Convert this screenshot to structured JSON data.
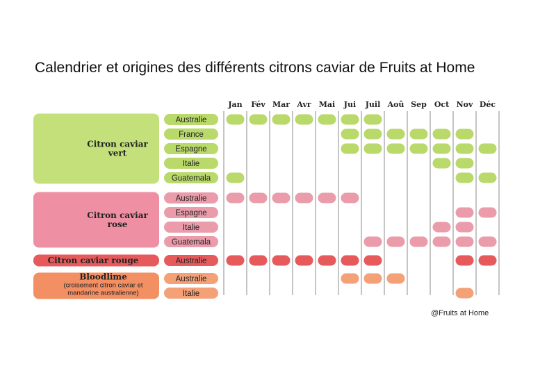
{
  "title": "Calendrier et origines des différents citrons caviar de Fruits at Home",
  "credit": "@Fruits at Home",
  "months": [
    "Jan",
    "Fév",
    "Mar",
    "Avr",
    "Mai",
    "Jui",
    "Juil",
    "Aoû",
    "Sep",
    "Oct",
    "Nov",
    "Déc"
  ],
  "colors": {
    "green": "#b9d96a",
    "green_block": "#c3e07a",
    "pink": "#eb9cab",
    "pink_block": "#ef8fa3",
    "red": "#e65a5c",
    "orange": "#f4a178",
    "orange_block": "#f28f63"
  },
  "groups": [
    {
      "label": [
        "Citron caviar",
        "vert"
      ],
      "sub": [],
      "color": "green",
      "rows": [
        {
          "country": "Australie",
          "months": [
            1,
            2,
            3,
            4,
            5,
            6,
            7
          ]
        },
        {
          "country": "France",
          "months": [
            6,
            7,
            8,
            9,
            10,
            11
          ]
        },
        {
          "country": "Espagne",
          "months": [
            6,
            7,
            8,
            9,
            10,
            11,
            12
          ]
        },
        {
          "country": "Italie",
          "months": [
            10,
            11
          ]
        },
        {
          "country": "Guatemala",
          "months": [
            1,
            11,
            12
          ]
        }
      ]
    },
    {
      "label": [
        "Citron caviar",
        "rose"
      ],
      "sub": [],
      "color": "pink",
      "rows": [
        {
          "country": "Australie",
          "months": [
            1,
            2,
            3,
            4,
            5,
            6
          ]
        },
        {
          "country": "Espagne",
          "months": [
            11,
            12
          ]
        },
        {
          "country": "Italie",
          "months": [
            10,
            11
          ]
        },
        {
          "country": "Guatemala",
          "months": [
            7,
            8,
            9,
            10,
            11,
            12
          ]
        }
      ]
    },
    {
      "label": [
        "Citron caviar rouge"
      ],
      "sub": [],
      "color": "red",
      "rows": [
        {
          "country": "Australie",
          "months": [
            1,
            2,
            3,
            4,
            5,
            6,
            7,
            11,
            12
          ]
        }
      ]
    },
    {
      "label": [
        "Bloodlime"
      ],
      "sub": [
        "(croisement citron caviar et",
        "mandarine australienne)"
      ],
      "color": "orange",
      "rows": [
        {
          "country": "Australie",
          "months": [
            6,
            7,
            8
          ]
        },
        {
          "country": "Italie",
          "months": [
            11
          ]
        }
      ]
    }
  ]
}
